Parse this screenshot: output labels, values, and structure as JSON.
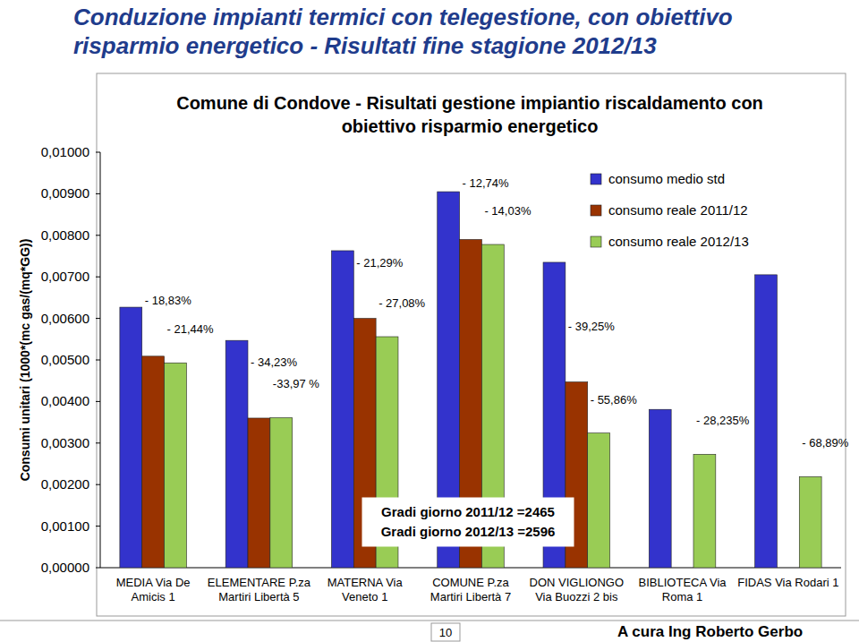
{
  "page": {
    "header": "Conduzione impianti termici con telegestione, con obiettivo risparmio energetico - Risultati fine stagione 2012/13",
    "page_number": "10",
    "footer": "A cura Ing Roberto Gerbo"
  },
  "chart_data": {
    "type": "bar",
    "title": "Comune di Condove - Risultati gestione impiantio riscaldamento con obiettivo risparmio energetico",
    "y_label": "Consumi unitari (1000*(mc gas/(mq*GG))",
    "categories": [
      "MEDIA Via De\nAmicis 1",
      "ELEMENTARE P.za\nMartiri Libertà 5",
      "MATERNA Via\nVeneto 1",
      "COMUNE P.za\nMartiri Libertà 7",
      "DON VIGLIONGO\nVia Buozzi 2 bis",
      "BIBLIOTECA Via\nRoma 1",
      "FIDAS Via Rodari 1"
    ],
    "series": [
      {
        "name": "consumo medio std",
        "color": "#3333cc",
        "values": [
          0.00627,
          0.00547,
          0.00763,
          0.00905,
          0.00735,
          0.00381,
          0.00705
        ],
        "annotations": [
          null,
          null,
          null,
          null,
          null,
          null,
          null
        ]
      },
      {
        "name": "consumo reale 2011/12",
        "color": "#993300",
        "values": [
          0.00509,
          0.0036,
          0.006,
          0.0079,
          0.00447,
          null,
          null
        ],
        "annotations": [
          "- 18,83%",
          "- 34,23%",
          "- 21,29%",
          "- 12,74%",
          "- 39,25%",
          null,
          null
        ]
      },
      {
        "name": "consumo reale 2012/13",
        "color": "#99cc55",
        "values": [
          0.00493,
          0.00361,
          0.00556,
          0.00778,
          0.00324,
          0.00273,
          0.00219
        ],
        "annotations": [
          "- 21,44%",
          "-33,97 %",
          "- 27,08%",
          "- 14,03%",
          "- 55,86%",
          "- 28,235%",
          "- 68,89%"
        ]
      }
    ],
    "ylim": [
      0,
      0.01
    ],
    "yticks": [
      {
        "value": 0,
        "label": "0,00000"
      },
      {
        "value": 0.001,
        "label": "0,00100"
      },
      {
        "value": 0.002,
        "label": "0,00200"
      },
      {
        "value": 0.003,
        "label": "0,00300"
      },
      {
        "value": 0.004,
        "label": "0,00400"
      },
      {
        "value": 0.005,
        "label": "0,00500"
      },
      {
        "value": 0.006,
        "label": "0,00600"
      },
      {
        "value": 0.007,
        "label": "0,00700"
      },
      {
        "value": 0.008,
        "label": "0,00800"
      },
      {
        "value": 0.009,
        "label": "0,00900"
      },
      {
        "value": 0.01,
        "label": "0,01000"
      }
    ],
    "grid": false,
    "legend": "upper right",
    "annotation_box": [
      "Gradi giorno 2011/12 =2465",
      "Gradi giorno 2012/13 =2596"
    ]
  }
}
